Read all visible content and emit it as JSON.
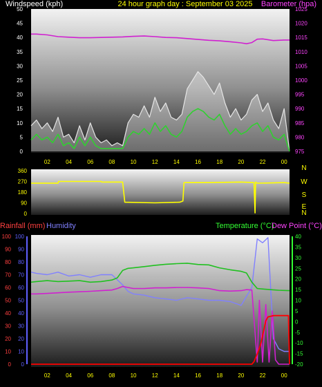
{
  "header": {
    "left_title": "Windspeed (kph)",
    "center_title": "24 hour graph day : September 03 2025",
    "right_title": "Barometer (hpa)"
  },
  "bottom_header": {
    "rainfall": "Rainfall (mm)",
    "humidity": "Humidity",
    "temperature": "Temperature (°C)",
    "dewpoint": "Dew Point (°C)"
  },
  "colors": {
    "background": "#000000",
    "wind_gust": "#e6e6e6",
    "wind_avg": "#30d030",
    "barometer": "#d020d0",
    "direction": "#ffff00",
    "humidity": "#8080ff",
    "temperature": "#20c020",
    "dewpoint": "#d020d0",
    "rainfall": "#ff0000",
    "rain_axis": "#ff4040",
    "hum_axis": "#6060ff",
    "temp_axis": "#33ff33",
    "title_yellow": "#ffff00",
    "title_magenta": "#ff44ff"
  },
  "chart_data": [
    {
      "type": "line",
      "panel": "wind",
      "x_tick_labels": [
        "02",
        "04",
        "06",
        "08",
        "10",
        "12",
        "14",
        "16",
        "18",
        "20",
        "22",
        "00"
      ],
      "x_hour_range": [
        0.5,
        24.5
      ],
      "y_left": {
        "label": "Windspeed (kph)",
        "ticks": [
          0,
          5,
          10,
          15,
          20,
          25,
          30,
          35,
          40,
          45,
          50
        ],
        "range": [
          0,
          50
        ]
      },
      "y_right": {
        "label": "Barometer (hpa)",
        "ticks": [
          975,
          980,
          985,
          990,
          995,
          1000,
          1005,
          1010,
          1015,
          1020,
          1025
        ],
        "range": [
          975,
          1025
        ]
      },
      "series": [
        {
          "name": "Barometer",
          "axis": "right",
          "x": [
            0.5,
            1,
            2,
            3,
            4,
            5,
            6,
            7,
            8,
            9,
            10,
            11,
            12,
            13,
            14,
            15,
            16,
            17,
            18,
            19,
            20,
            20.5,
            21,
            21.5,
            22,
            23,
            24,
            24.5
          ],
          "y": [
            1016.2,
            1016.2,
            1015.9,
            1015.3,
            1015.1,
            1014.9,
            1014.9,
            1015.0,
            1015.1,
            1015.2,
            1015.4,
            1015.5,
            1015.3,
            1015.0,
            1014.9,
            1014.6,
            1014.3,
            1014.0,
            1013.8,
            1013.5,
            1013.1,
            1012.8,
            1013.2,
            1014.4,
            1014.5,
            1013.9,
            1014.1,
            1014.1
          ]
        },
        {
          "name": "Wind gust",
          "axis": "left",
          "x": [
            0.5,
            1,
            1.5,
            2,
            2.5,
            3,
            3.5,
            4,
            4.5,
            5,
            5.5,
            6,
            6.5,
            7,
            7.5,
            8,
            8.5,
            9,
            9.5,
            10,
            10.5,
            11,
            11.5,
            12,
            12.5,
            13,
            13.5,
            14,
            14.5,
            15,
            15.5,
            16,
            16.5,
            17,
            17.5,
            18,
            18.5,
            19,
            19.5,
            20,
            20.5,
            21,
            21.5,
            22,
            22.5,
            23,
            23.5,
            24,
            24.5
          ],
          "y": [
            9,
            11,
            8,
            10,
            7,
            12,
            5,
            6,
            3,
            9,
            4,
            10,
            5,
            3,
            4,
            2,
            3,
            2,
            10,
            13,
            12,
            16,
            12,
            19,
            14,
            17,
            12,
            11,
            13,
            22,
            25,
            28,
            26,
            23,
            20,
            24,
            17,
            12,
            15,
            11,
            13,
            18,
            20,
            14,
            17,
            11,
            8,
            15,
            0
          ]
        },
        {
          "name": "Wind average",
          "axis": "left",
          "x": [
            0.5,
            1,
            1.5,
            2,
            2.5,
            3,
            3.5,
            4,
            4.5,
            5,
            5.5,
            6,
            6.5,
            7,
            7.5,
            8,
            8.5,
            9,
            9.5,
            10,
            10.5,
            11,
            11.5,
            12,
            12.5,
            13,
            13.5,
            14,
            14.5,
            15,
            15.5,
            16,
            16.5,
            17,
            17.5,
            18,
            18.5,
            19,
            19.5,
            20,
            20.5,
            21,
            21.5,
            22,
            22.5,
            23,
            23.5,
            24,
            24.5
          ],
          "y": [
            4,
            6,
            4,
            5,
            3,
            6,
            2,
            3,
            1,
            5,
            2,
            5,
            2,
            1,
            1,
            1,
            1,
            1,
            5,
            7,
            6,
            8,
            6,
            10,
            7,
            9,
            6,
            5,
            7,
            12,
            14,
            15,
            14,
            12,
            11,
            13,
            9,
            6,
            8,
            6,
            7,
            9,
            10,
            7,
            9,
            5,
            4,
            6,
            0
          ]
        }
      ]
    },
    {
      "type": "line",
      "panel": "direction",
      "y_ticks": [
        0,
        90,
        180,
        270,
        360
      ],
      "y_range": [
        0,
        360
      ],
      "compass_labels": [
        "N",
        "W",
        "S",
        "E",
        "N"
      ],
      "series": [
        {
          "name": "Wind direction",
          "x": [
            0.5,
            3,
            3.05,
            7,
            7.05,
            9,
            9.2,
            12,
            14.3,
            14.6,
            14.7,
            17,
            20,
            21.2,
            21.3,
            21.35,
            21.5,
            24,
            24.5
          ],
          "y": [
            255,
            255,
            270,
            270,
            265,
            265,
            95,
            90,
            95,
            105,
            260,
            260,
            265,
            260,
            5,
            265,
            255,
            260,
            255
          ]
        }
      ]
    },
    {
      "type": "line",
      "panel": "climate",
      "y_left_rain": {
        "label": "Rainfall (mm)",
        "ticks": [
          0,
          10,
          20,
          30,
          40,
          50,
          60,
          70,
          80,
          90,
          100
        ],
        "range": [
          0,
          100
        ]
      },
      "y_left_humidity": {
        "label": "Humidity",
        "ticks": [
          0,
          10,
          20,
          30,
          40,
          50,
          60,
          70,
          80,
          90,
          100
        ],
        "range": [
          0,
          100
        ]
      },
      "y_right": {
        "label": "Temperature (°C)",
        "ticks": [
          -20,
          -15,
          -10,
          -5,
          0,
          5,
          10,
          15,
          20,
          25,
          30,
          35,
          40
        ],
        "range": [
          -20,
          40
        ]
      },
      "series": [
        {
          "name": "Humidity",
          "axis": "left",
          "x": [
            0.5,
            1,
            2,
            3,
            4,
            5,
            6,
            7,
            8,
            8.5,
            9,
            9.5,
            10,
            11,
            12,
            13,
            14,
            15,
            16,
            17,
            18,
            19,
            20,
            20.5,
            21,
            21.5,
            22,
            22.5,
            23,
            23.5,
            24,
            24.5
          ],
          "y": [
            72,
            71,
            70,
            72,
            69,
            70,
            68,
            70,
            70,
            66,
            62,
            57,
            55,
            54,
            52,
            51,
            50,
            52,
            51,
            50,
            50,
            49,
            46,
            53,
            60,
            98,
            95,
            99,
            20,
            12,
            10,
            10
          ]
        },
        {
          "name": "Temperature",
          "axis": "right",
          "x": [
            0.5,
            1,
            2,
            3,
            4,
            5,
            6,
            7,
            8,
            8.5,
            9,
            9.5,
            10,
            11,
            12,
            13,
            14,
            15,
            16,
            17,
            18,
            19,
            20,
            20.5,
            21,
            21.5,
            22,
            22.5,
            23,
            23.5,
            24,
            24.5
          ],
          "y": [
            18.5,
            18.8,
            19.2,
            18.8,
            19.0,
            19.2,
            18.5,
            18.8,
            19.5,
            20.5,
            24.0,
            25.0,
            25.2,
            25.8,
            26.4,
            26.9,
            27.2,
            27.4,
            26.8,
            26.6,
            25.2,
            24.3,
            23.6,
            22.8,
            18.5,
            15.5,
            15.3,
            15.1,
            14.9,
            14.7,
            14.6,
            14.5
          ]
        },
        {
          "name": "Dew Point",
          "axis": "right",
          "x": [
            0.5,
            1,
            2,
            3,
            4,
            5,
            6,
            7,
            8,
            8.5,
            9,
            9.5,
            10,
            11,
            12,
            13,
            14,
            15,
            16,
            17,
            18,
            19,
            20,
            20.5,
            21,
            21.5,
            21.7,
            22,
            22.3,
            22.6,
            22.9,
            23.2,
            23.5,
            24,
            24.5
          ],
          "y": [
            13.0,
            13.0,
            13.2,
            13.5,
            13.8,
            14.0,
            14.2,
            14.5,
            14.8,
            15.5,
            16.5,
            16.0,
            15.5,
            15.5,
            15.8,
            15.8,
            16.0,
            16.0,
            15.8,
            15.5,
            14.5,
            14.3,
            14.5,
            15.0,
            14.8,
            -19,
            10,
            -19,
            8,
            -19,
            5,
            -18,
            -20,
            -20,
            -20
          ]
        },
        {
          "name": "Rainfall",
          "axis": "left",
          "x": [
            0.5,
            21,
            21.2,
            21.5,
            21.8,
            22,
            22.3,
            22.5,
            23,
            23.5,
            24,
            24.4,
            24.5
          ],
          "y": [
            0,
            0,
            2,
            8,
            15,
            22,
            34,
            37,
            38,
            38,
            38,
            38,
            0
          ]
        }
      ]
    }
  ]
}
